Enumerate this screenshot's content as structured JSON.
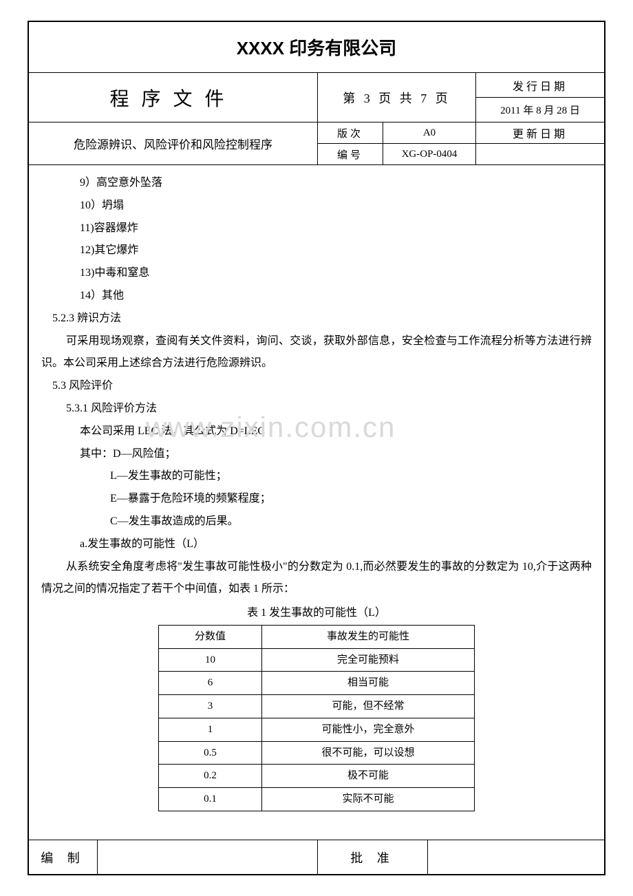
{
  "header": {
    "company": "XXXX 印务有限公司",
    "doc_type": "程序文件",
    "page_info": "第 3 页 共 7 页",
    "issue_label": "发行日期",
    "issue_date": "2011 年 8 月 28 日",
    "doc_title": "危险源辨识、风险评价和风险控制程序",
    "version_label": "版次",
    "version_val": "A0",
    "code_label": "编号",
    "code_val": "XG-OP-0404",
    "update_label": "更新日期"
  },
  "body": {
    "l1": "9）高空意外坠落",
    "l2": "10）坍塌",
    "l3": "11)容器爆炸",
    "l4": "12)其它爆炸",
    "l5": "13)中毒和窒息",
    "l6": "14）其他",
    "s523": "5.2.3 辨识方法",
    "p523": "可采用现场观察，查阅有关文件资料，询问、交谈，获取外部信息，安全检查与工作流程分析等方法进行辨识。本公司采用上述综合方法进行危险源辨识。",
    "s53": "5.3 风险评价",
    "s531": "5.3.1 风险评价方法",
    "p531a": "本公司采用 LEC 法，其公式为 D=LEC",
    "p531b": "其中：D—风险值；",
    "p531c": "L—发生事故的可能性；",
    "p531d": "E—暴露于危险环境的频繁程度；",
    "p531e": "C—发生事故造成的后果。",
    "pa": "a.发生事故的可能性（L）",
    "ppara": "从系统安全角度考虑将\"发生事故可能性极小\"的分数定为 0.1,而必然要发生的事故的分数定为 10,介于这两种情况之间的情况指定了若干个中间值，如表 1 所示："
  },
  "table": {
    "caption": "表 1 发生事故的可能性（L）",
    "col1": "分数值",
    "col2": "事故发生的可能性",
    "rows": [
      {
        "score": "10",
        "desc": "完全可能预料"
      },
      {
        "score": "6",
        "desc": "相当可能"
      },
      {
        "score": "3",
        "desc": "可能，但不经常"
      },
      {
        "score": "1",
        "desc": "可能性小，完全意外"
      },
      {
        "score": "0.5",
        "desc": "很不可能，可以设想"
      },
      {
        "score": "0.2",
        "desc": "极不可能"
      },
      {
        "score": "0.1",
        "desc": "实际不可能"
      }
    ]
  },
  "footer": {
    "left": "编 制",
    "right": "批 准"
  },
  "watermark": "www.zixin.com.cn"
}
